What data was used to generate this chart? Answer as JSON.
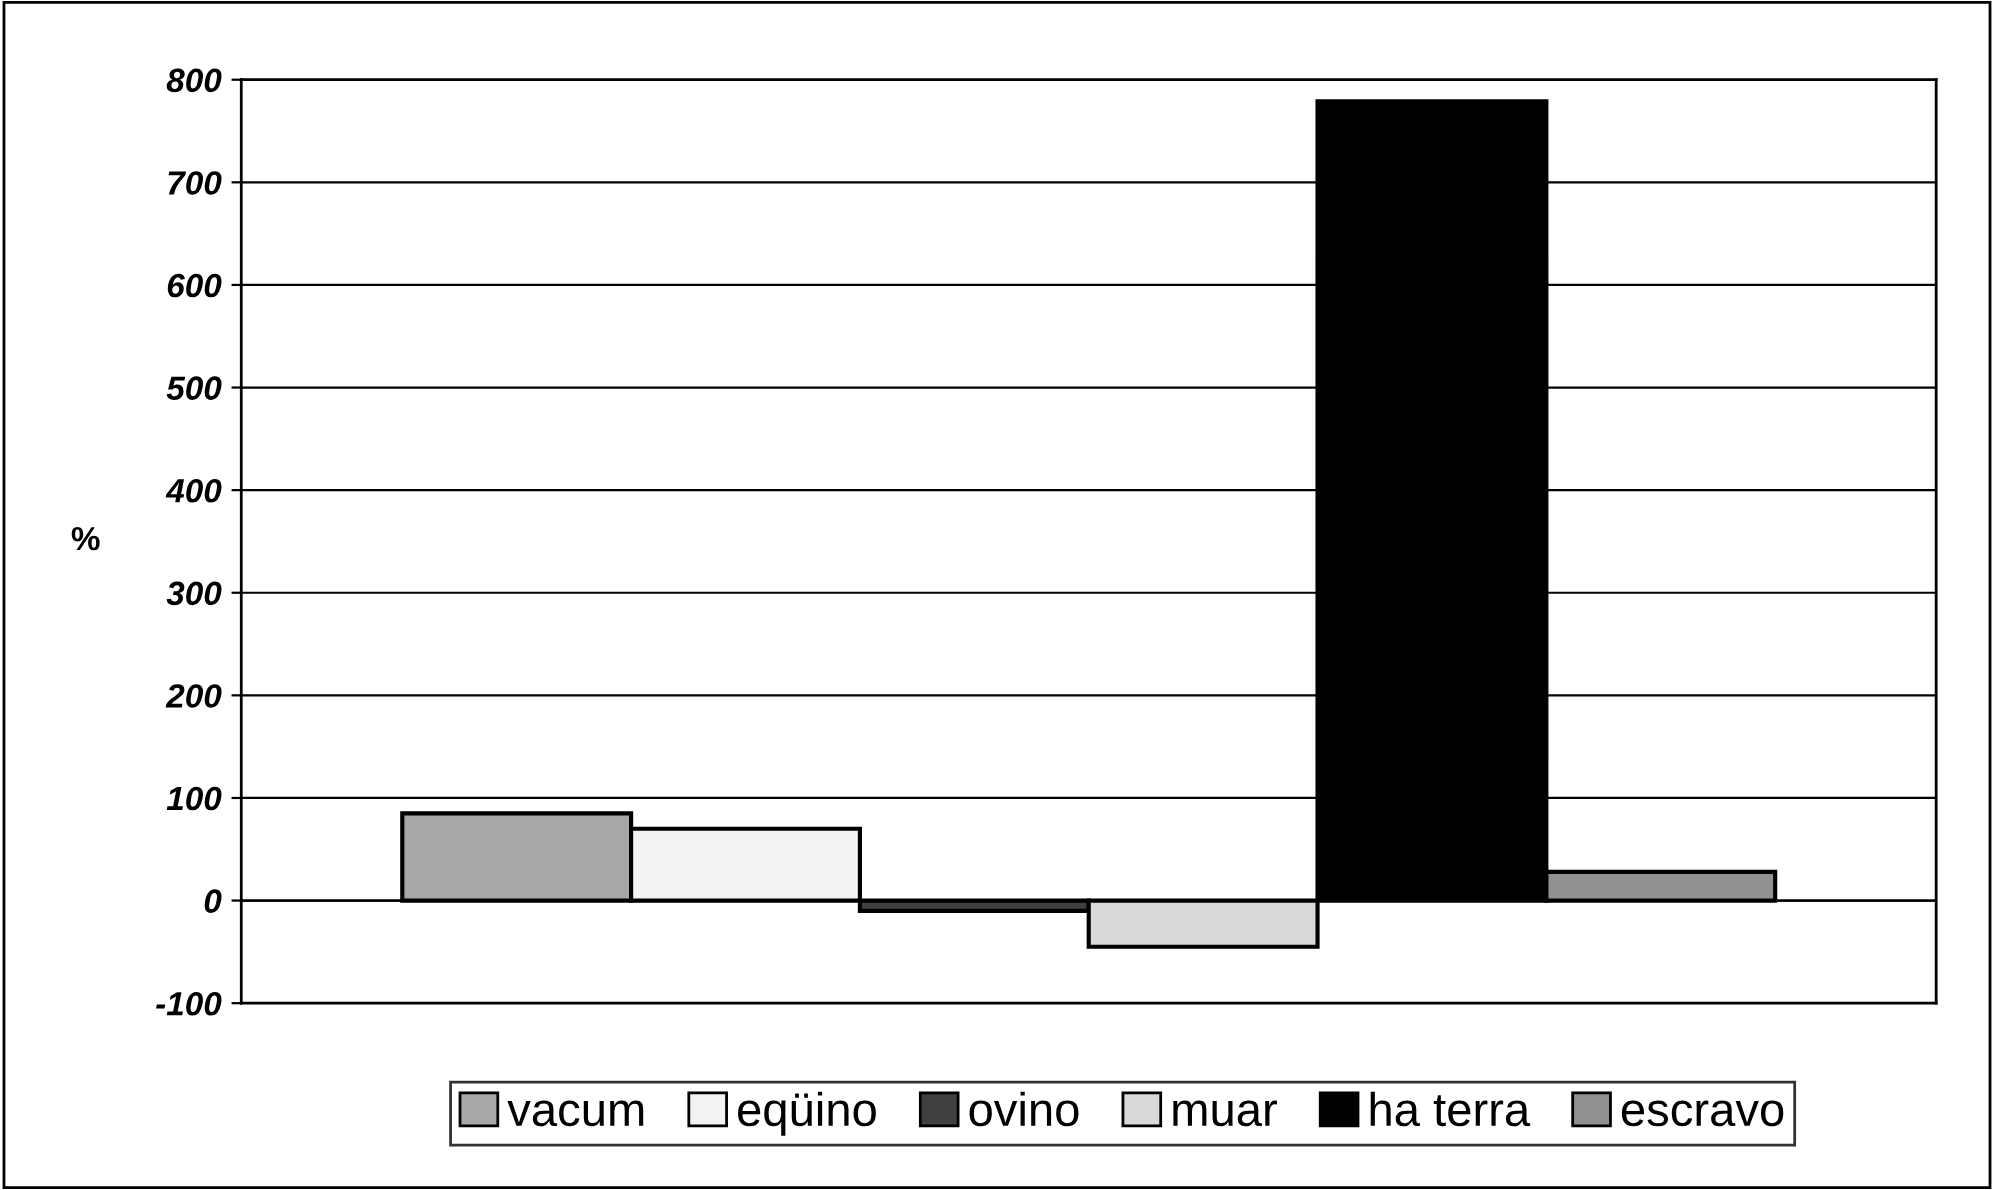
{
  "chart_data": {
    "type": "bar",
    "ylabel": "%",
    "categories": [
      null
    ],
    "series": [
      {
        "name": "vacum",
        "color": "#a8a8a8",
        "values": [
          85
        ]
      },
      {
        "name": "eqüino",
        "color": "#f2f2f2",
        "values": [
          70
        ]
      },
      {
        "name": "ovino",
        "color": "#404040",
        "values": [
          -10
        ]
      },
      {
        "name": "muar",
        "color": "#d9d9d9",
        "values": [
          -45
        ]
      },
      {
        "name": "ha terra",
        "color": "#000000",
        "values": [
          779
        ]
      },
      {
        "name": "escravo",
        "color": "#909090",
        "values": [
          28
        ]
      }
    ],
    "ylim": [
      -100,
      800
    ],
    "yticks": [
      -100,
      0,
      100,
      200,
      300,
      400,
      500,
      600,
      700,
      800
    ],
    "grid": "y",
    "legend": "bottom"
  }
}
